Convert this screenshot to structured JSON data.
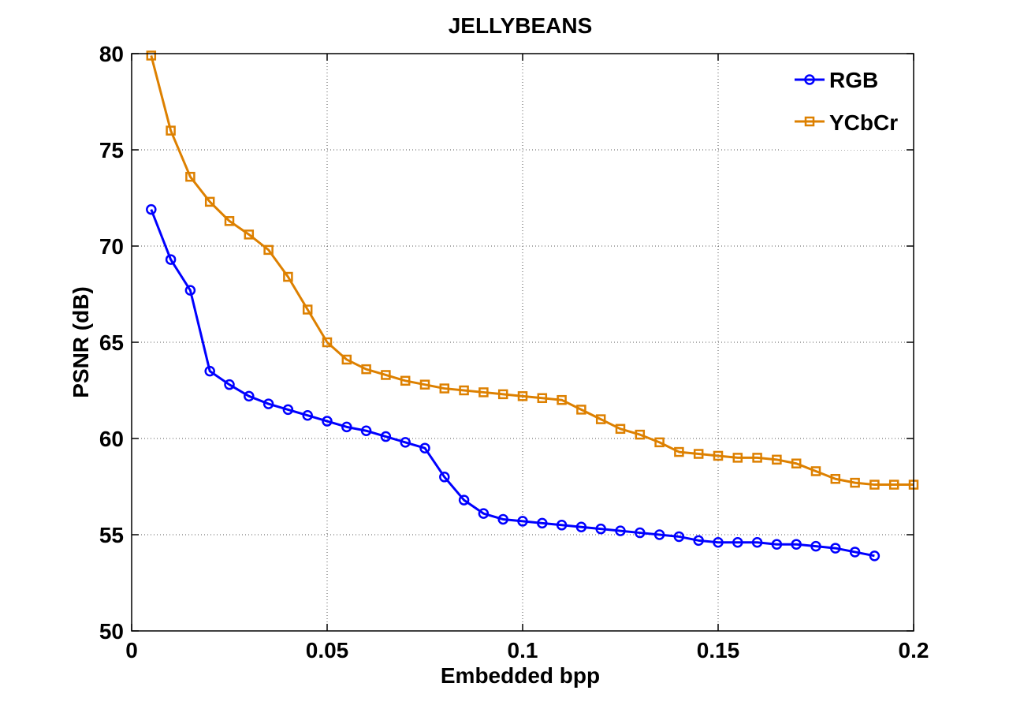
{
  "chart_data": {
    "type": "line",
    "title": "JELLYBEANS",
    "xlabel": "Embedded bpp",
    "ylabel": "PSNR (dB)",
    "xlim": [
      0,
      0.2
    ],
    "ylim": [
      50,
      80
    ],
    "xticks": [
      0,
      0.05,
      0.1,
      0.15,
      0.2
    ],
    "xtick_labels": [
      "0",
      "0.05",
      "0.1",
      "0.15",
      "0.2"
    ],
    "yticks": [
      50,
      55,
      60,
      65,
      70,
      75,
      80
    ],
    "ytick_labels": [
      "50",
      "55",
      "60",
      "65",
      "70",
      "75",
      "80"
    ],
    "grid": true,
    "legend_position": "top-right",
    "series": [
      {
        "name": "RGB",
        "color": "#0000ff",
        "marker": "circle",
        "x": [
          0.005,
          0.01,
          0.015,
          0.02,
          0.025,
          0.03,
          0.035,
          0.04,
          0.045,
          0.05,
          0.055,
          0.06,
          0.065,
          0.07,
          0.075,
          0.08,
          0.085,
          0.09,
          0.095,
          0.1,
          0.105,
          0.11,
          0.115,
          0.12,
          0.125,
          0.13,
          0.135,
          0.14,
          0.145,
          0.15,
          0.155,
          0.16,
          0.165,
          0.17,
          0.175,
          0.18,
          0.185,
          0.19
        ],
        "y": [
          71.9,
          69.3,
          67.7,
          63.5,
          62.8,
          62.2,
          61.8,
          61.5,
          61.2,
          60.9,
          60.6,
          60.4,
          60.1,
          59.8,
          59.5,
          58.0,
          56.8,
          56.1,
          55.8,
          55.7,
          55.6,
          55.5,
          55.4,
          55.3,
          55.2,
          55.1,
          55.0,
          54.9,
          54.7,
          54.6,
          54.6,
          54.6,
          54.5,
          54.5,
          54.4,
          54.3,
          54.1,
          53.9
        ]
      },
      {
        "name": "YCbCr",
        "color": "#dd8000",
        "marker": "square",
        "x": [
          0.005,
          0.01,
          0.015,
          0.02,
          0.025,
          0.03,
          0.035,
          0.04,
          0.045,
          0.05,
          0.055,
          0.06,
          0.065,
          0.07,
          0.075,
          0.08,
          0.085,
          0.09,
          0.095,
          0.1,
          0.105,
          0.11,
          0.115,
          0.12,
          0.125,
          0.13,
          0.135,
          0.14,
          0.145,
          0.15,
          0.155,
          0.16,
          0.165,
          0.17,
          0.175,
          0.18,
          0.185,
          0.19,
          0.195,
          0.2
        ],
        "y": [
          79.9,
          76.0,
          73.6,
          72.3,
          71.3,
          70.6,
          69.8,
          68.4,
          66.7,
          65.0,
          64.1,
          63.6,
          63.3,
          63.0,
          62.8,
          62.6,
          62.5,
          62.4,
          62.3,
          62.2,
          62.1,
          62.0,
          61.5,
          61.0,
          60.5,
          60.2,
          59.8,
          59.3,
          59.2,
          59.1,
          59.0,
          59.0,
          58.9,
          58.7,
          58.3,
          57.9,
          57.7,
          57.6,
          57.6,
          57.6
        ]
      }
    ]
  }
}
